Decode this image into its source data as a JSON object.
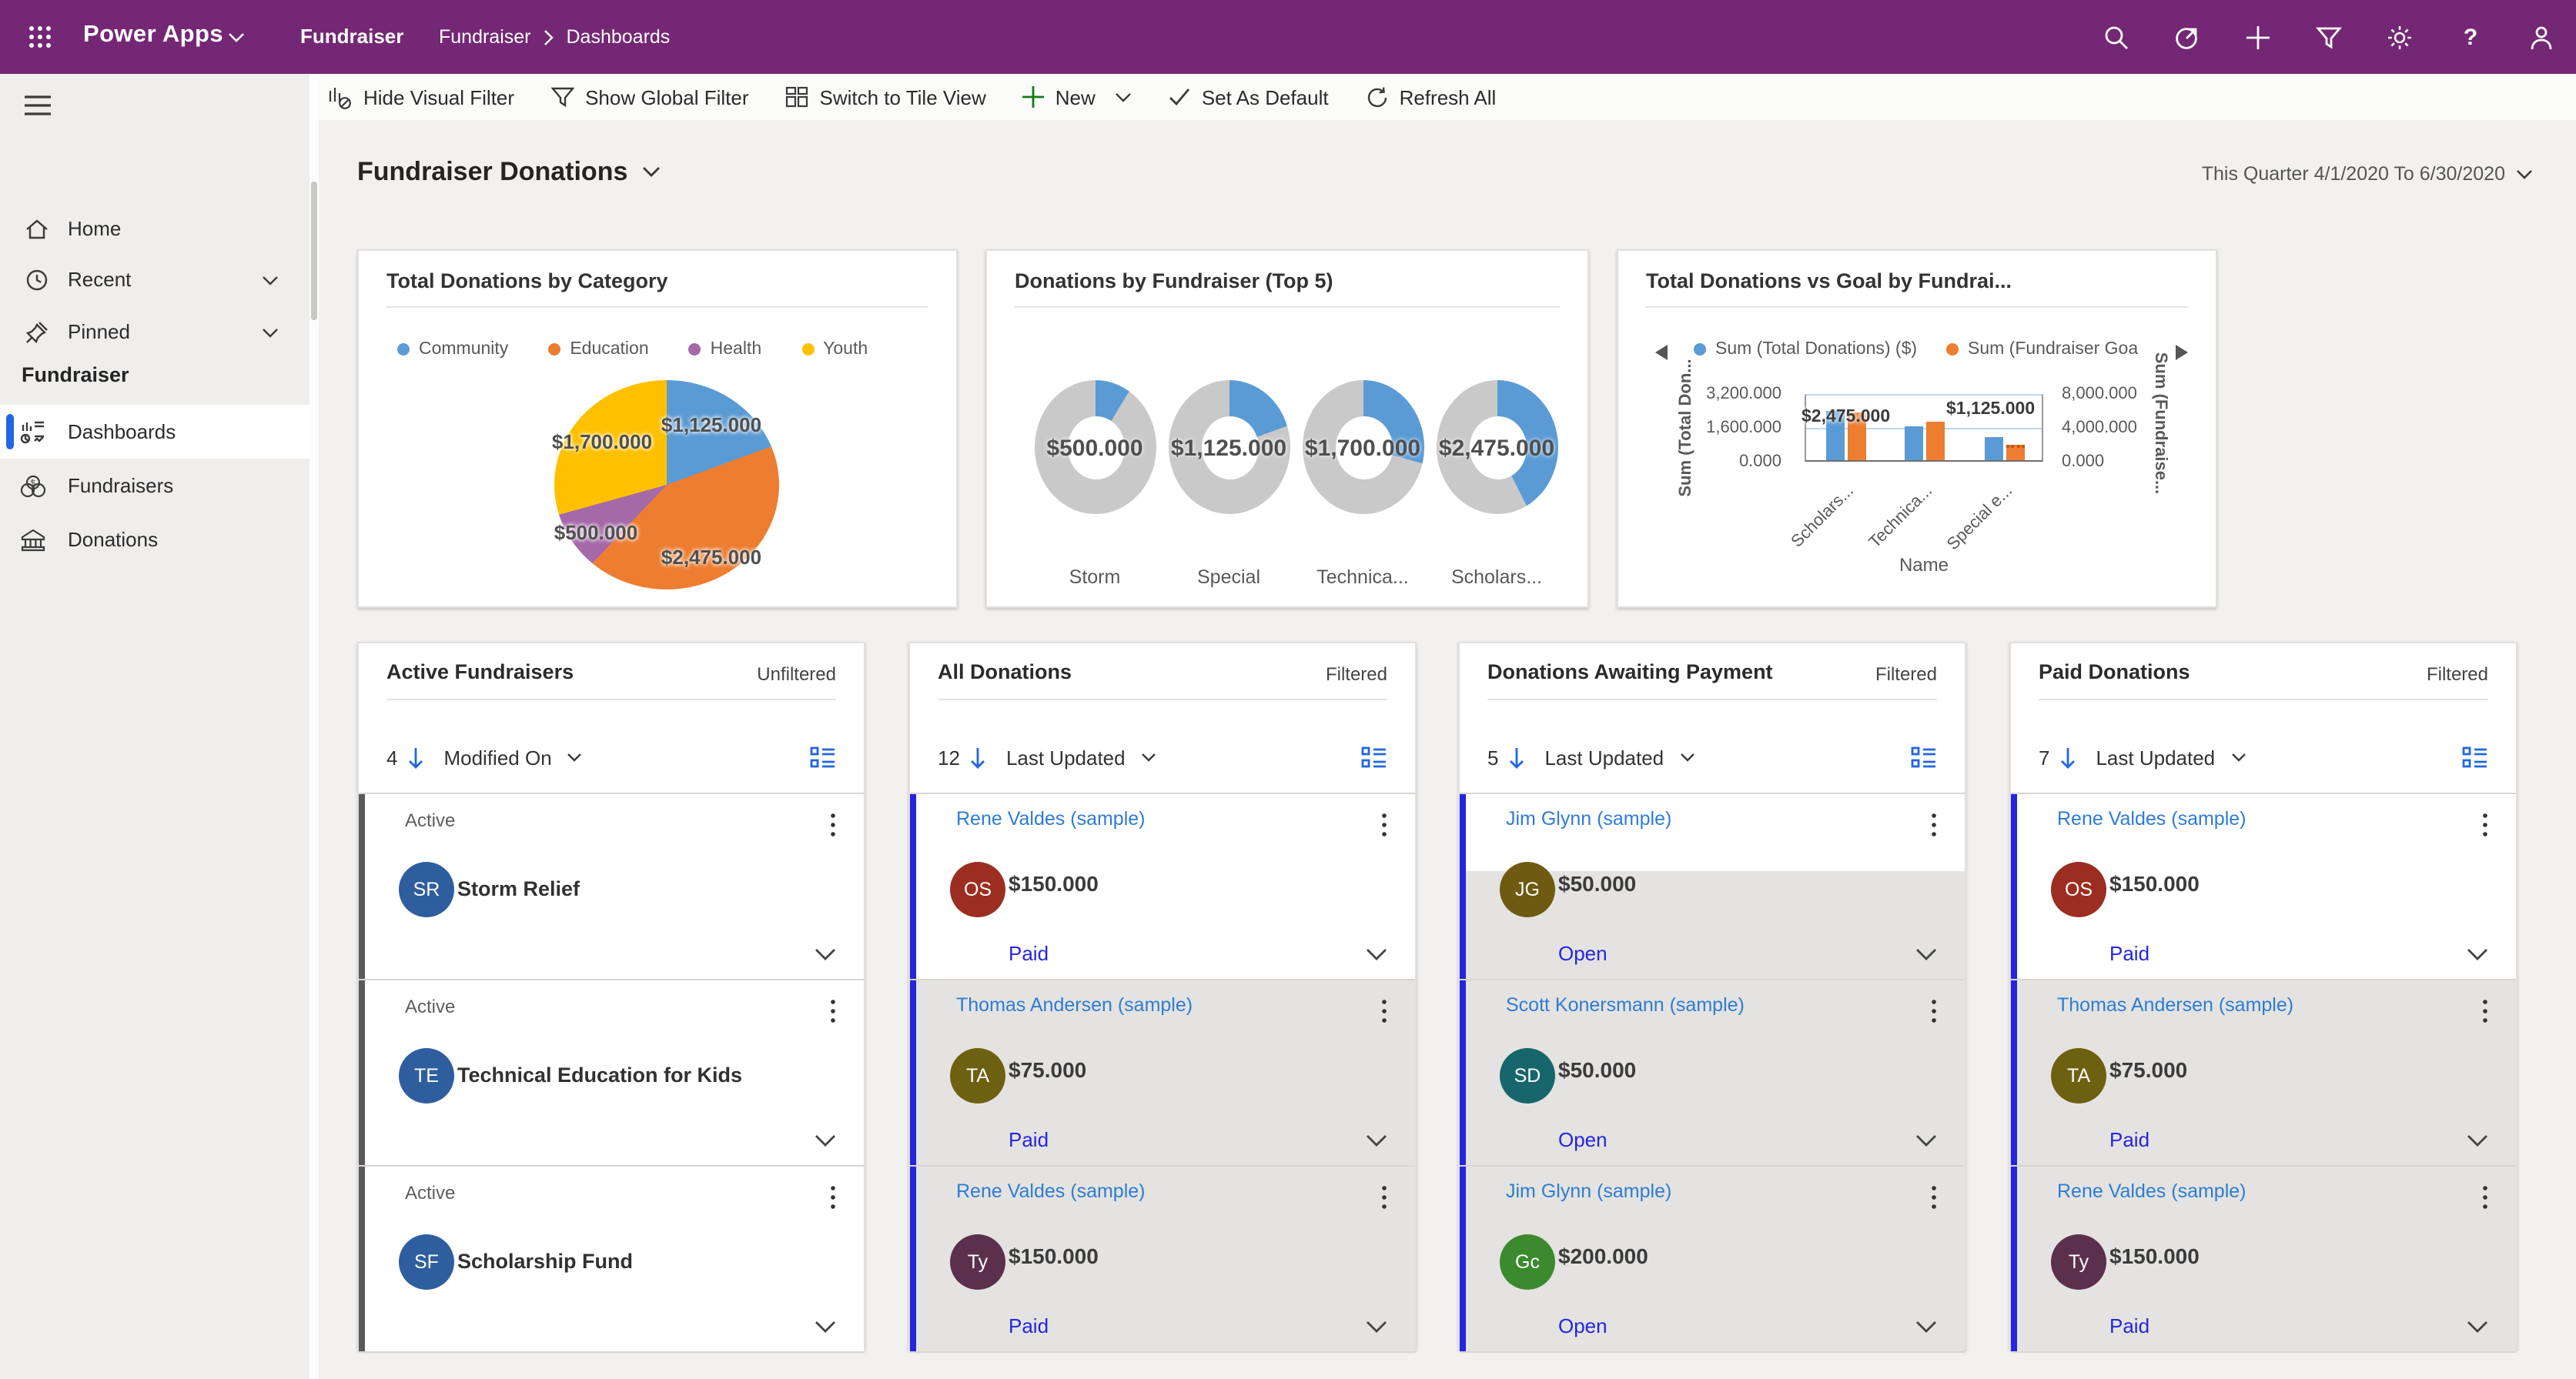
{
  "topbar": {
    "brand": "Power Apps",
    "environment": "Fundraiser",
    "breadcrumb": {
      "app": "Fundraiser",
      "page": "Dashboards"
    }
  },
  "cmdbar": {
    "hide_visual_filter": "Hide Visual Filter",
    "show_global_filter": "Show Global Filter",
    "switch_tile_view": "Switch to Tile View",
    "new_label": "New",
    "set_default": "Set As Default",
    "refresh_all": "Refresh All"
  },
  "sidebar": {
    "menu": [
      {
        "label": "Home"
      },
      {
        "label": "Recent"
      },
      {
        "label": "Pinned"
      }
    ],
    "section": "Fundraiser",
    "entities": [
      {
        "label": "Dashboards"
      },
      {
        "label": "Fundraisers"
      },
      {
        "label": "Donations"
      }
    ]
  },
  "page": {
    "title": "Fundraiser Donations",
    "date_filter": "This Quarter 4/1/2020 To 6/30/2020"
  },
  "chart_data": [
    {
      "type": "pie",
      "title": "Total Donations by Category",
      "slices": [
        {
          "label": "Community",
          "value": 1125,
          "display": "$1,125.000",
          "color": "#5B9BD5"
        },
        {
          "label": "Education",
          "value": 2475,
          "display": "$2,475.000",
          "color": "#ED7D31"
        },
        {
          "label": "Health",
          "value": 500,
          "display": "$500.000",
          "color": "#A569A8"
        },
        {
          "label": "Youth",
          "value": 1700,
          "display": "$1,700.000",
          "color": "#FFC000"
        }
      ]
    },
    {
      "type": "pie",
      "variant": "donut-multiples",
      "title": "Donations by Fundraiser (Top 5)",
      "total": 5800,
      "color": "#5B9BD5",
      "rest_color": "#C9C9C9",
      "donuts": [
        {
          "label": "Storm",
          "value": 500,
          "display": "$500.000"
        },
        {
          "label": "Special",
          "value": 1125,
          "display": "$1,125.000"
        },
        {
          "label": "Technica...",
          "value": 1700,
          "display": "$1,700.000"
        },
        {
          "label": "Scholars...",
          "value": 2475,
          "display": "$2,475.000"
        }
      ]
    },
    {
      "type": "bar",
      "title": "Total Donations vs Goal by Fundrai...",
      "legend": [
        {
          "label": "Sum (Total Donations) ($)",
          "color": "#5B9BD5"
        },
        {
          "label": "Sum (Fundraiser Goa",
          "color": "#ED7D31"
        }
      ],
      "axes": {
        "left": {
          "title": "Sum (Total Don...",
          "ticks": [
            "3,200.000",
            "1,600.000",
            "0.000"
          ],
          "max": 3200
        },
        "right": {
          "title": "Sum (Fundraise...",
          "ticks": [
            "8,000.000",
            "4,000.000",
            "0.000"
          ],
          "max": 8000
        },
        "x_title": "Name"
      },
      "categories": [
        "Scholars...",
        "Technica...",
        "Special e..."
      ],
      "series": [
        {
          "name": "Sum (Total Donations) ($)",
          "axis": "left",
          "color": "#5B9BD5",
          "values": [
            2475,
            1700,
            1125
          ]
        },
        {
          "name": "Sum (Fundraiser Goal)",
          "axis": "right",
          "color": "#ED7D31",
          "values": [
            5900,
            4800,
            1500
          ]
        }
      ],
      "data_labels": [
        {
          "text": "$2,475.000"
        },
        {
          "text": "$1,125.000"
        }
      ],
      "grid": "horizontal"
    }
  ],
  "lists": [
    {
      "title": "Active Fundraisers",
      "filter": "Unfiltered",
      "count": "4",
      "sort": "Modified On",
      "rows": [
        {
          "status": "Active",
          "initials": "SR",
          "name": "Storm Relief",
          "avatar_color": "#2E5E9E"
        },
        {
          "status": "Active",
          "initials": "TE",
          "name": "Technical Education for Kids",
          "avatar_color": "#2E5E9E"
        },
        {
          "status": "Active",
          "initials": "SF",
          "name": "Scholarship Fund",
          "avatar_color": "#2E5E9E"
        }
      ]
    },
    {
      "title": "All Donations",
      "filter": "Filtered",
      "count": "12",
      "sort": "Last Updated",
      "rows": [
        {
          "name": "Rene Valdes (sample)",
          "initials": "OS",
          "avatar_color": "#9B2E20",
          "amount": "$150.000",
          "status": "Paid"
        },
        {
          "name": "Thomas Andersen (sample)",
          "initials": "TA",
          "avatar_color": "#6E6011",
          "amount": "$75.000",
          "status": "Paid"
        },
        {
          "name": "Rene Valdes (sample)",
          "initials": "Ty",
          "avatar_color": "#5C2F4C",
          "amount": "$150.000",
          "status": "Paid"
        }
      ]
    },
    {
      "title": "Donations Awaiting Payment",
      "filter": "Filtered",
      "count": "5",
      "sort": "Last Updated",
      "rows": [
        {
          "name": "Jim Glynn (sample)",
          "initials": "JG",
          "avatar_color": "#6E5A10",
          "amount": "$50.000",
          "status": "Open"
        },
        {
          "name": "Scott Konersmann (sample)",
          "initials": "SD",
          "avatar_color": "#17666B",
          "amount": "$50.000",
          "status": "Open"
        },
        {
          "name": "Jim Glynn (sample)",
          "initials": "Gc",
          "avatar_color": "#3C8A2E",
          "amount": "$200.000",
          "status": "Open"
        }
      ]
    },
    {
      "title": "Paid Donations",
      "filter": "Filtered",
      "count": "7",
      "sort": "Last Updated",
      "rows": [
        {
          "name": "Rene Valdes (sample)",
          "initials": "OS",
          "avatar_color": "#9B2E20",
          "amount": "$150.000",
          "status": "Paid"
        },
        {
          "name": "Thomas Andersen (sample)",
          "initials": "TA",
          "avatar_color": "#6E6011",
          "amount": "$75.000",
          "status": "Paid"
        },
        {
          "name": "Rene Valdes (sample)",
          "initials": "Ty",
          "avatar_color": "#5C2F4C",
          "amount": "$150.000",
          "status": "Paid"
        }
      ]
    }
  ],
  "colors": {
    "header_purple": "#742774",
    "selected_pill_blue": "#2266E3",
    "record_link_blue": "#2E7CD6",
    "status_link_blue": "#2525E0",
    "row_grey": "#E4E3E1"
  }
}
